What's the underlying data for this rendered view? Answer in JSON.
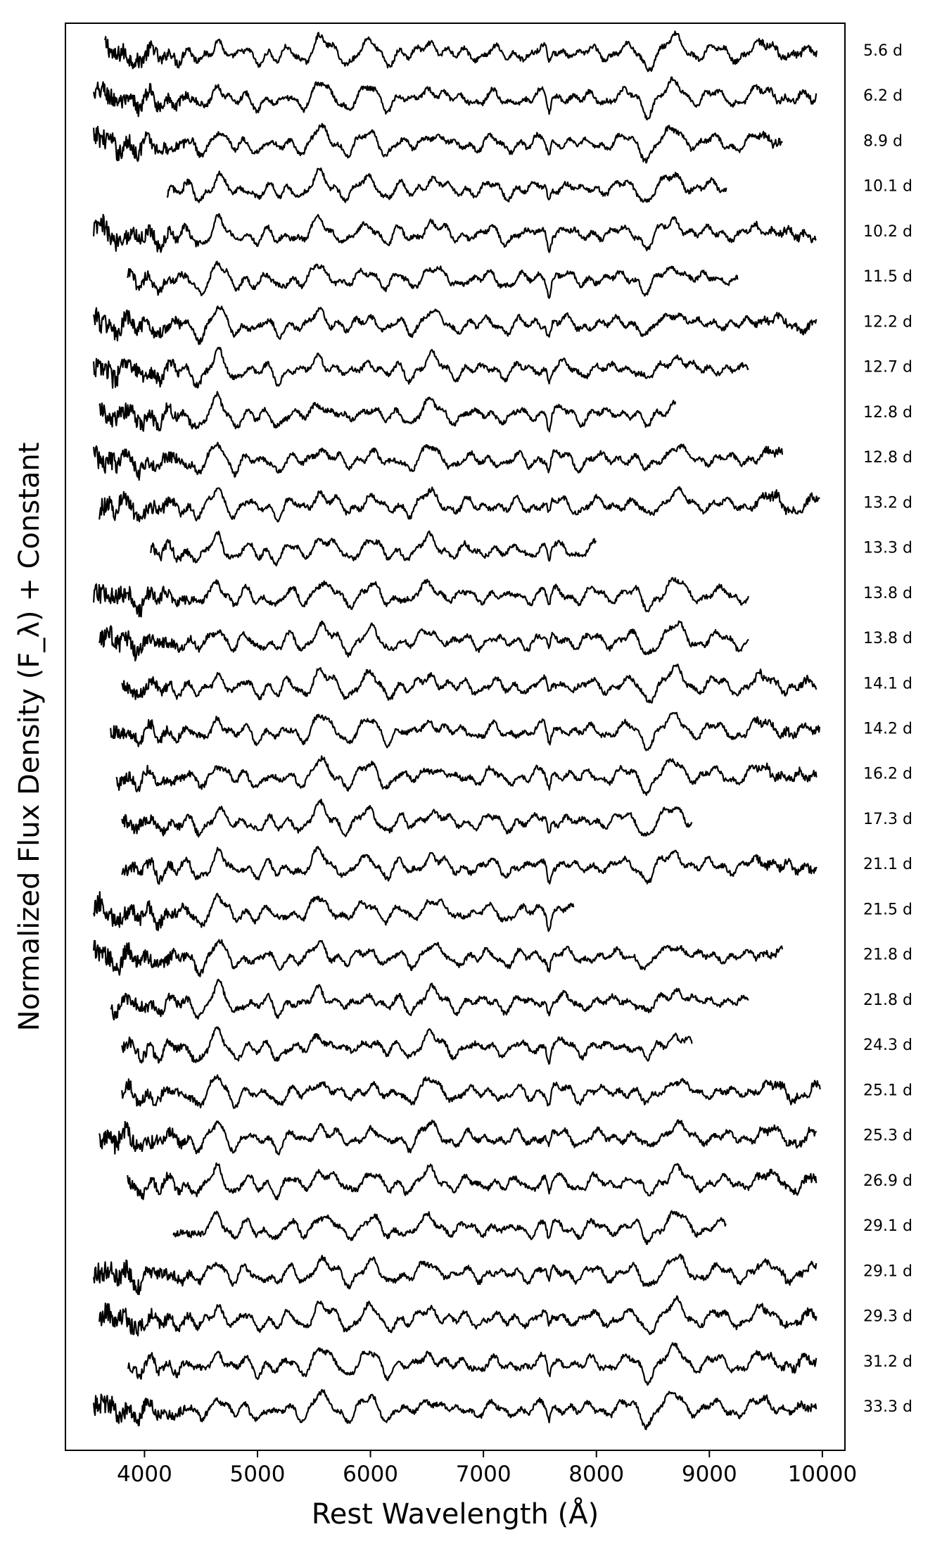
{
  "chart_data": {
    "type": "line",
    "xlabel": "Rest Wavelength (Å)",
    "ylabel": "Normalized Flux Density (F_λ) + Constant",
    "xlim": [
      3300,
      10200
    ],
    "xticks": [
      4000,
      5000,
      6000,
      7000,
      8000,
      9000,
      10000
    ],
    "xtick_labels": [
      "4000",
      "5000",
      "6000",
      "7000",
      "8000",
      "9000",
      "10000"
    ],
    "y_ticks_shown": false,
    "grid": false,
    "legend": "none",
    "series": [
      {
        "label": "5.6 d",
        "x_range": [
          3650,
          9950
        ]
      },
      {
        "label": "6.2 d",
        "x_range": [
          3550,
          9950
        ]
      },
      {
        "label": "8.9 d",
        "x_range": [
          3550,
          9650
        ]
      },
      {
        "label": "10.1 d",
        "x_range": [
          4200,
          9150
        ]
      },
      {
        "label": "10.2 d",
        "x_range": [
          3550,
          9950
        ]
      },
      {
        "label": "11.5 d",
        "x_range": [
          3850,
          9250
        ]
      },
      {
        "label": "12.2 d",
        "x_range": [
          3550,
          9950
        ]
      },
      {
        "label": "12.7 d",
        "x_range": [
          3550,
          9350
        ]
      },
      {
        "label": "12.8 d",
        "x_range": [
          3600,
          8700
        ]
      },
      {
        "label": "12.8 d",
        "x_range": [
          3550,
          9650
        ]
      },
      {
        "label": "13.2 d",
        "x_range": [
          3600,
          9980
        ]
      },
      {
        "label": "13.3 d",
        "x_range": [
          4050,
          8000
        ]
      },
      {
        "label": "13.8 d",
        "x_range": [
          3550,
          9350
        ]
      },
      {
        "label": "13.8 d",
        "x_range": [
          3600,
          9350
        ]
      },
      {
        "label": "14.1 d",
        "x_range": [
          3800,
          9950
        ]
      },
      {
        "label": "14.2 d",
        "x_range": [
          3700,
          9980
        ]
      },
      {
        "label": "16.2 d",
        "x_range": [
          3750,
          9950
        ]
      },
      {
        "label": "17.3 d",
        "x_range": [
          3800,
          8850
        ]
      },
      {
        "label": "21.1 d",
        "x_range": [
          3800,
          9950
        ]
      },
      {
        "label": "21.5 d",
        "x_range": [
          3550,
          7800
        ]
      },
      {
        "label": "21.8 d",
        "x_range": [
          3550,
          9650
        ]
      },
      {
        "label": "21.8 d",
        "x_range": [
          3700,
          9350
        ]
      },
      {
        "label": "24.3 d",
        "x_range": [
          3800,
          8850
        ]
      },
      {
        "label": "25.1 d",
        "x_range": [
          3800,
          9980
        ]
      },
      {
        "label": "25.3 d",
        "x_range": [
          3600,
          9950
        ]
      },
      {
        "label": "26.9 d",
        "x_range": [
          3850,
          9950
        ]
      },
      {
        "label": "29.1 d",
        "x_range": [
          4250,
          9150
        ]
      },
      {
        "label": "29.1 d",
        "x_range": [
          3550,
          9950
        ]
      },
      {
        "label": "29.3 d",
        "x_range": [
          3600,
          9950
        ]
      },
      {
        "label": "31.2 d",
        "x_range": [
          3850,
          9950
        ]
      },
      {
        "label": "33.3 d",
        "x_range": [
          3550,
          9950
        ]
      }
    ]
  }
}
